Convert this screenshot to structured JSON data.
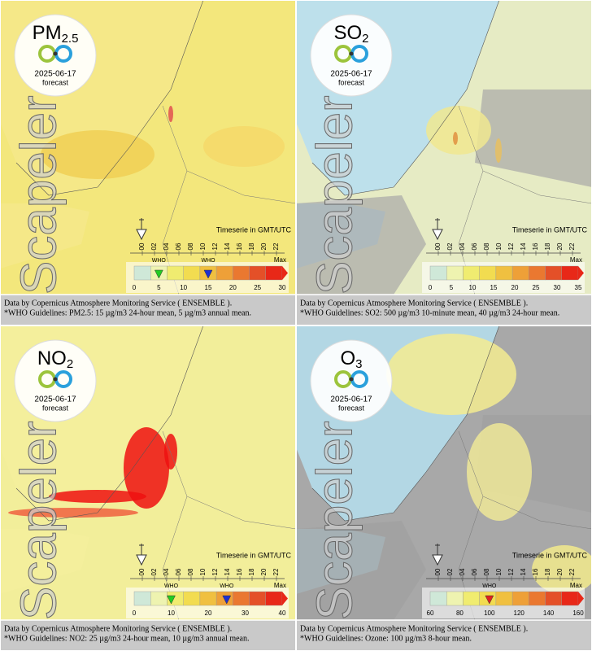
{
  "panels": [
    {
      "title": "PM",
      "title_sub": "2.5",
      "date": "2025-06-17",
      "forecast": "forecast",
      "watermark": "Scapeler",
      "timeserie": "Timeserie in GMT/UTC",
      "hours": [
        "00",
        "02",
        "04",
        "06",
        "08",
        "10",
        "12",
        "14",
        "16",
        "18",
        "20",
        "22"
      ],
      "scale_ticks": [
        0,
        5,
        10,
        15,
        20,
        25,
        30
      ],
      "max_label": "Max",
      "who": [
        {
          "value": 5,
          "label": "WHO",
          "color": "#22cc22"
        },
        {
          "value": 15,
          "label": "WHO",
          "color": "#1f2fd0"
        }
      ],
      "caption": [
        "Data by Copernicus Atmosphere Monitoring Service ( ENSEMBLE ).",
        "*WHO Guidelines: PM2.5: 15 µg/m3 24-hour mean, 5 µg/m3 annual mean."
      ]
    },
    {
      "title": "SO",
      "title_sub": "2",
      "date": "2025-06-17",
      "forecast": "forecast",
      "watermark": "Scapeler",
      "timeserie": "Timeserie in GMT/UTC",
      "hours": [
        "00",
        "02",
        "04",
        "06",
        "08",
        "10",
        "12",
        "14",
        "16",
        "18",
        "20",
        "22"
      ],
      "scale_ticks": [
        0,
        5,
        10,
        15,
        20,
        25,
        30,
        35
      ],
      "max_label": "Max",
      "who": [],
      "caption": [
        "Data by Copernicus Atmosphere Monitoring Service ( ENSEMBLE ).",
        "*WHO Guidelines: SO2: 500 µg/m3 10-minute mean, 40 µg/m3 24-hour mean."
      ]
    },
    {
      "title": "NO",
      "title_sub": "2",
      "date": "2025-06-17",
      "forecast": "forecast",
      "watermark": "Scapeler",
      "timeserie": "Timeserie in GMT/UTC",
      "hours": [
        "00",
        "02",
        "04",
        "06",
        "08",
        "10",
        "12",
        "14",
        "16",
        "18",
        "20",
        "22"
      ],
      "scale_ticks": [
        0,
        10,
        20,
        30,
        40
      ],
      "max_label": "Max",
      "who": [
        {
          "value": 10,
          "label": "WHO",
          "color": "#22cc22"
        },
        {
          "value": 25,
          "label": "WHO",
          "color": "#1f2fd0"
        }
      ],
      "caption": [
        "Data by Copernicus Atmosphere Monitoring Service ( ENSEMBLE ).",
        "*WHO Guidelines: NO2: 25 µg/m3 24-hour mean, 10 µg/m3 annual mean."
      ]
    },
    {
      "title": "O",
      "title_sub": "3",
      "date": "2025-06-17",
      "forecast": "forecast",
      "watermark": "Scapeler",
      "timeserie": "Timeserie in GMT/UTC",
      "hours": [
        "00",
        "02",
        "04",
        "06",
        "08",
        "10",
        "12",
        "14",
        "16",
        "18",
        "20",
        "22"
      ],
      "scale_ticks": [
        60,
        80,
        100,
        120,
        140,
        160
      ],
      "max_label": "Max",
      "who": [
        {
          "value": 100,
          "label": "WHO",
          "color": "#e02020"
        }
      ],
      "caption": [
        "Data by Copernicus Atmosphere Monitoring Service ( ENSEMBLE ).",
        "*WHO Guidelines: Ozone: 100 µg/m3 8-hour mean."
      ]
    }
  ]
}
